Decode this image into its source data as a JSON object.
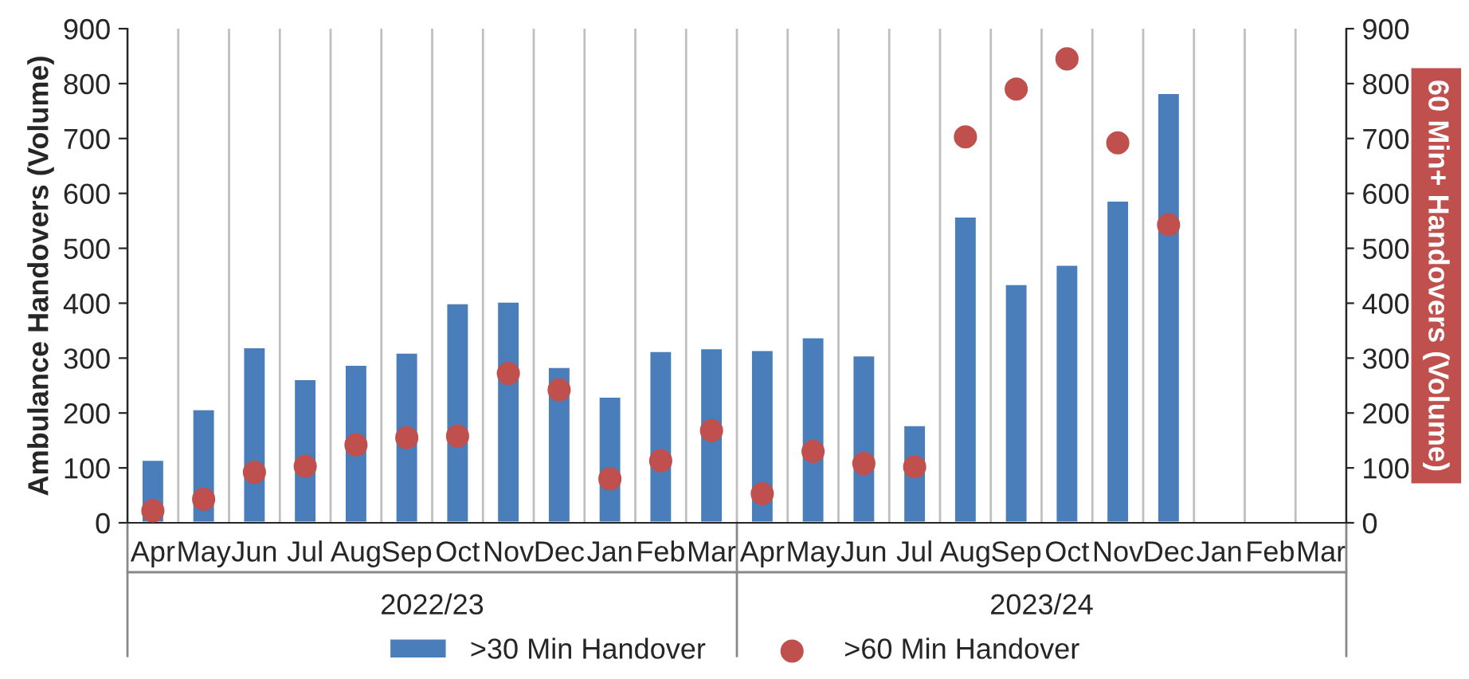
{
  "chart_data": {
    "type": "bar",
    "categories": [
      "Apr",
      "May",
      "Jun",
      "Jul",
      "Aug",
      "Sep",
      "Oct",
      "Nov",
      "Dec",
      "Jan",
      "Feb",
      "Mar",
      "Apr",
      "May",
      "Jun",
      "Jul",
      "Aug",
      "Sep",
      "Oct",
      "Nov",
      "Dec",
      "Jan",
      "Feb",
      "Mar"
    ],
    "series": [
      {
        "name": ">30 Min Handover",
        "color": "#4a7ebb",
        "values": [
          115,
          207,
          320,
          262,
          288,
          310,
          400,
          403,
          284,
          230,
          313,
          318,
          315,
          338,
          305,
          178,
          558,
          435,
          470,
          587,
          783,
          null,
          null,
          null
        ]
      },
      {
        "name": ">60 Min Handover",
        "color": "#c0504d",
        "type": "scatter",
        "axis": "y2",
        "marker": "circle",
        "values": [
          22,
          43,
          92,
          103,
          142,
          155,
          158,
          272,
          242,
          80,
          113,
          168,
          53,
          130,
          108,
          102,
          703,
          790,
          845,
          692,
          543,
          null,
          null,
          null
        ]
      }
    ],
    "ylabel": "Ambulance Handovers (Volume)",
    "y2label": "60 Min+ Handovers (Volume)",
    "ylim": [
      0,
      900
    ],
    "yticks": [
      0,
      100,
      200,
      300,
      400,
      500,
      600,
      700,
      800,
      900
    ],
    "y2lim": [
      0,
      900
    ],
    "y2ticks": [
      0,
      100,
      200,
      300,
      400,
      500,
      600,
      700,
      800,
      900
    ],
    "annotations": [
      "2022/23",
      "2023/24"
    ],
    "grid": "x",
    "legend": "bottom"
  }
}
